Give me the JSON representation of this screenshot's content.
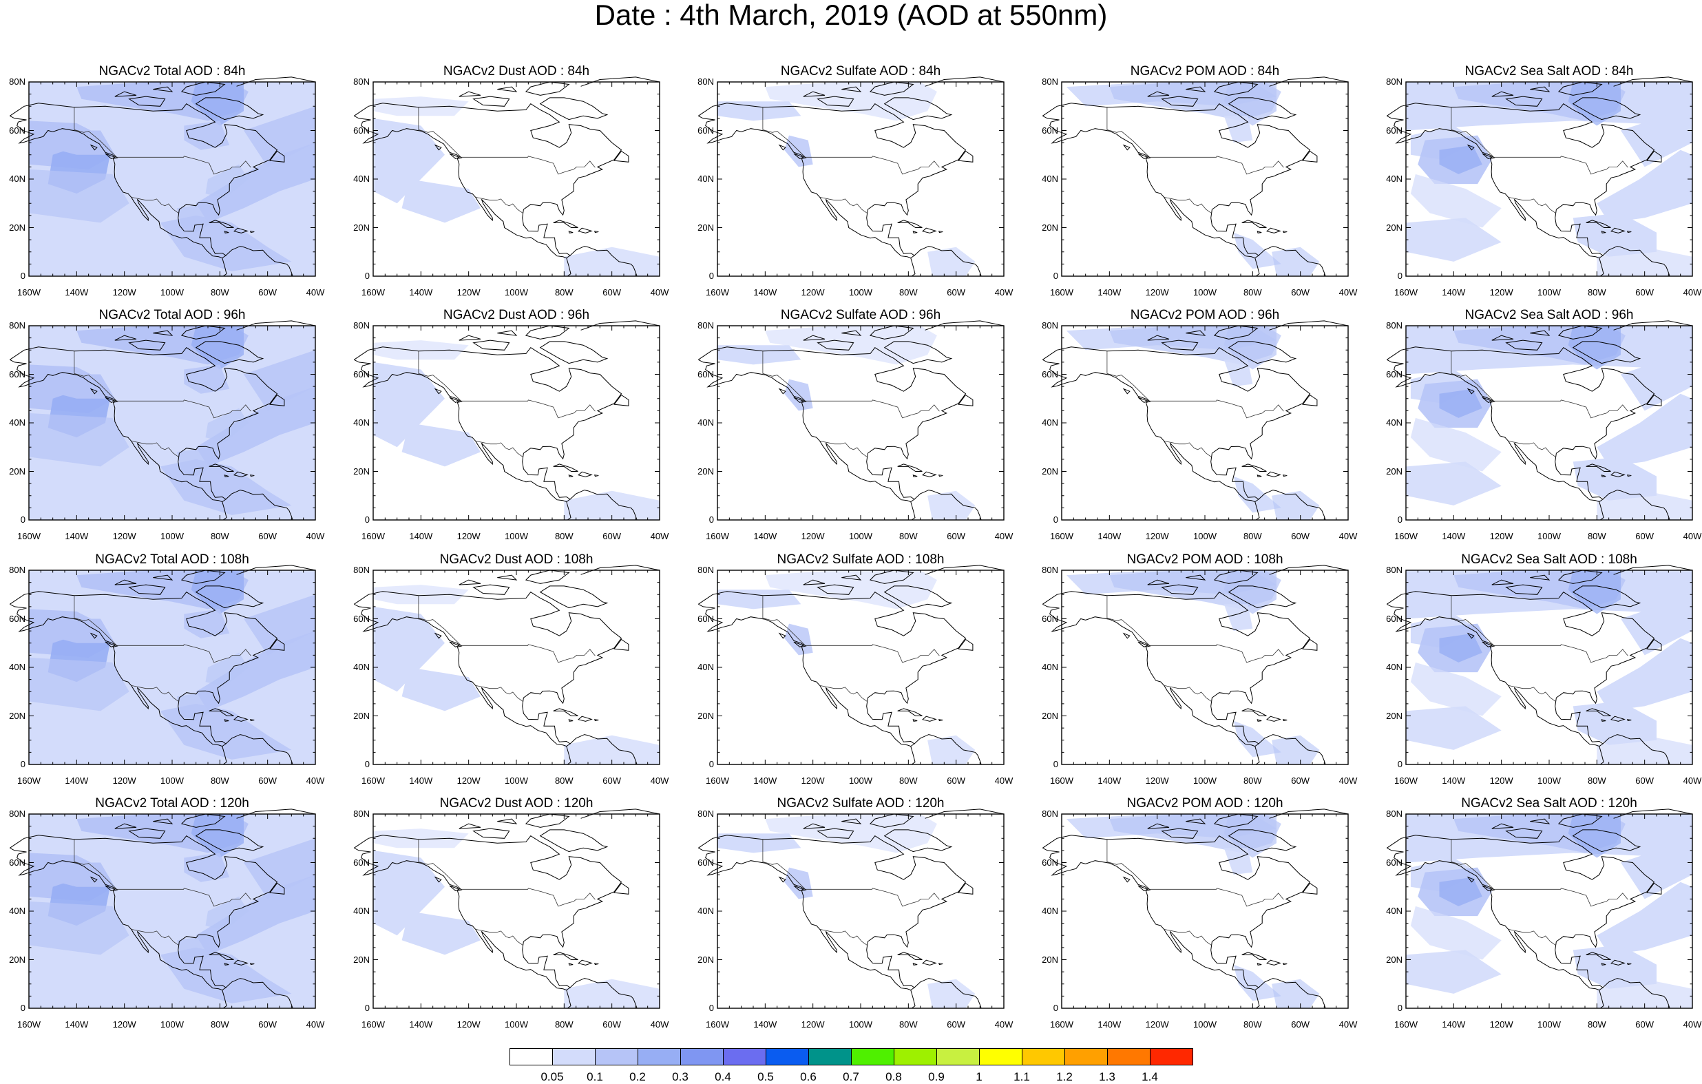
{
  "title": "Date : 4th March, 2019 (AOD at 550nm)",
  "panels": [
    [
      "NGACv2 Total AOD : 84h",
      "NGACv2 Dust AOD : 84h",
      "NGACv2 Sulfate AOD : 84h",
      "NGACv2 POM AOD : 84h",
      "NGACv2 Sea Salt AOD : 84h"
    ],
    [
      "NGACv2 Total AOD : 96h",
      "NGACv2 Dust AOD : 96h",
      "NGACv2 Sulfate AOD : 96h",
      "NGACv2 POM AOD : 96h",
      "NGACv2 Sea Salt AOD : 96h"
    ],
    [
      "NGACv2 Total AOD : 108h",
      "NGACv2 Dust AOD : 108h",
      "NGACv2 Sulfate AOD : 108h",
      "NGACv2 POM AOD : 108h",
      "NGACv2 Sea Salt AOD : 108h"
    ],
    [
      "NGACv2 Total AOD : 120h",
      "NGACv2 Dust AOD : 120h",
      "NGACv2 Sulfate AOD : 120h",
      "NGACv2 POM AOD : 120h",
      "NGACv2 Sea Salt  AOD : 120h"
    ]
  ],
  "lat_labels": [
    "80N",
    "60N",
    "40N",
    "20N",
    "0"
  ],
  "lon_labels": [
    "160W",
    "140W",
    "120W",
    "100W",
    "80W",
    "60W",
    "40W"
  ],
  "colorbar": {
    "labels": [
      "0.05",
      "0.1",
      "0.2",
      "0.3",
      "0.4",
      "0.5",
      "0.6",
      "0.7",
      "0.8",
      "0.9",
      "1",
      "1.1",
      "1.2",
      "1.3",
      "1.4"
    ],
    "colors": [
      "#ffffff",
      "#d3dcfb",
      "#b6c4f7",
      "#97aef4",
      "#7f96f2",
      "#6b6df0",
      "#0a5cf0",
      "#00938a",
      "#4ff000",
      "#9ef000",
      "#c8f040",
      "#ffff00",
      "#ffc800",
      "#ffa000",
      "#ff7800",
      "#ff2800"
    ]
  },
  "shading_colors": {
    "light": "#d3dcfb",
    "medium": "#b6c4f7",
    "dark": "#97aef4",
    "darker": "#7f96f2"
  }
}
